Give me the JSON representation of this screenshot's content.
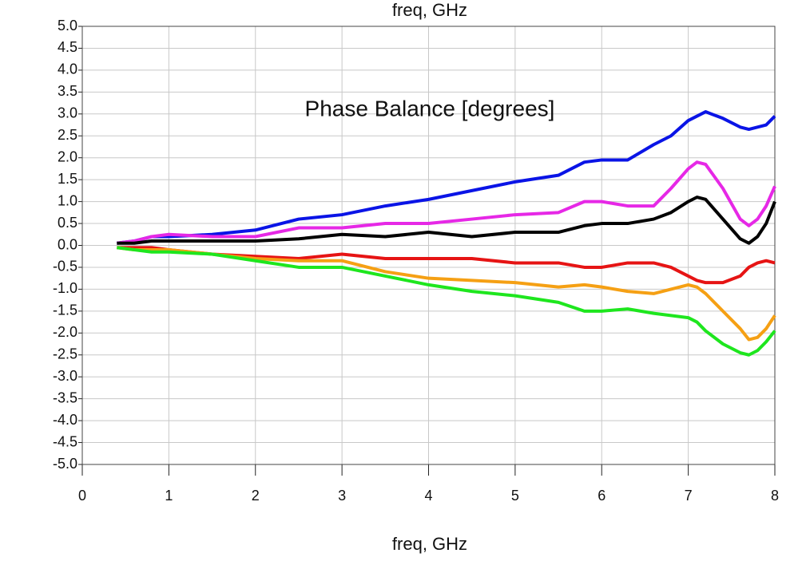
{
  "chart_data": {
    "type": "line",
    "top_label": "freq, GHz",
    "annotation": "Phase Balance [degrees]",
    "x_label": "freq, GHz",
    "x": [
      0.4,
      0.6,
      0.8,
      1,
      1.5,
      2,
      2.5,
      3,
      3.5,
      4,
      4.5,
      5,
      5.5,
      5.8,
      6,
      6.3,
      6.6,
      6.8,
      7,
      7.1,
      7.2,
      7.4,
      7.6,
      7.7,
      7.8,
      7.9,
      8
    ],
    "series": [
      {
        "color": "#0a14e6",
        "values": [
          0.05,
          0.1,
          0.2,
          0.2,
          0.25,
          0.35,
          0.6,
          0.7,
          0.9,
          1.05,
          1.25,
          1.45,
          1.6,
          1.9,
          1.95,
          1.95,
          2.3,
          2.5,
          2.85,
          2.95,
          3.05,
          2.9,
          2.7,
          2.65,
          2.7,
          2.75,
          2.95
        ]
      },
      {
        "color": "#e628e6",
        "values": [
          0.05,
          0.1,
          0.2,
          0.25,
          0.2,
          0.2,
          0.4,
          0.4,
          0.5,
          0.5,
          0.6,
          0.7,
          0.75,
          1.0,
          1.0,
          0.9,
          0.9,
          1.3,
          1.75,
          1.9,
          1.85,
          1.3,
          0.6,
          0.45,
          0.6,
          0.9,
          1.35
        ]
      },
      {
        "color": "#000000",
        "values": [
          0.05,
          0.05,
          0.1,
          0.1,
          0.1,
          0.1,
          0.15,
          0.25,
          0.2,
          0.3,
          0.2,
          0.3,
          0.3,
          0.45,
          0.5,
          0.5,
          0.6,
          0.75,
          1.0,
          1.1,
          1.05,
          0.6,
          0.15,
          0.05,
          0.2,
          0.5,
          1.0
        ]
      },
      {
        "color": "#e61414",
        "values": [
          -0.05,
          -0.05,
          -0.05,
          -0.1,
          -0.2,
          -0.25,
          -0.3,
          -0.2,
          -0.3,
          -0.3,
          -0.3,
          -0.4,
          -0.4,
          -0.5,
          -0.5,
          -0.4,
          -0.4,
          -0.5,
          -0.7,
          -0.8,
          -0.85,
          -0.85,
          -0.7,
          -0.5,
          -0.4,
          -0.35,
          -0.4
        ]
      },
      {
        "color": "#f5a014",
        "values": [
          -0.05,
          -0.1,
          -0.1,
          -0.1,
          -0.2,
          -0.3,
          -0.35,
          -0.35,
          -0.6,
          -0.75,
          -0.8,
          -0.85,
          -0.95,
          -0.9,
          -0.95,
          -1.05,
          -1.1,
          -1.0,
          -0.9,
          -0.95,
          -1.1,
          -1.5,
          -1.9,
          -2.15,
          -2.1,
          -1.9,
          -1.6
        ]
      },
      {
        "color": "#1ee61e",
        "values": [
          -0.05,
          -0.1,
          -0.15,
          -0.15,
          -0.2,
          -0.35,
          -0.5,
          -0.5,
          -0.7,
          -0.9,
          -1.05,
          -1.15,
          -1.3,
          -1.5,
          -1.5,
          -1.45,
          -1.55,
          -1.6,
          -1.65,
          -1.75,
          -1.95,
          -2.25,
          -2.45,
          -2.5,
          -2.4,
          -2.2,
          -1.95
        ]
      }
    ],
    "xlim": [
      0,
      8
    ],
    "xticks": [
      0,
      1,
      2,
      3,
      4,
      5,
      6,
      7,
      8
    ],
    "ylim": [
      -5,
      5
    ],
    "yticks": [
      {
        "value": 5,
        "label": "5.0"
      },
      {
        "value": 4.5,
        "label": "4.5"
      },
      {
        "value": 4,
        "label": "4.0"
      },
      {
        "value": 3.5,
        "label": "3.5"
      },
      {
        "value": 3,
        "label": "3.0"
      },
      {
        "value": 2.5,
        "label": "2.5"
      },
      {
        "value": 2,
        "label": "2.0"
      },
      {
        "value": 1.5,
        "label": "1.5"
      },
      {
        "value": 1,
        "label": "1.0"
      },
      {
        "value": 0.5,
        "label": "0.5"
      },
      {
        "value": 0,
        "label": "0.0"
      },
      {
        "value": -0.5,
        "label": "-0.5"
      },
      {
        "value": -1,
        "label": "-1.0"
      },
      {
        "value": -1.5,
        "label": "-1.5"
      },
      {
        "value": -2,
        "label": "-2.0"
      },
      {
        "value": -2.5,
        "label": "-2.5"
      },
      {
        "value": -3,
        "label": "-3.0"
      },
      {
        "value": -3.5,
        "label": "-3.5"
      },
      {
        "value": -4,
        "label": "-4.0"
      },
      {
        "value": -4.5,
        "label": "-4.5"
      },
      {
        "value": -5,
        "label": "-5.0"
      }
    ],
    "grid": true
  }
}
